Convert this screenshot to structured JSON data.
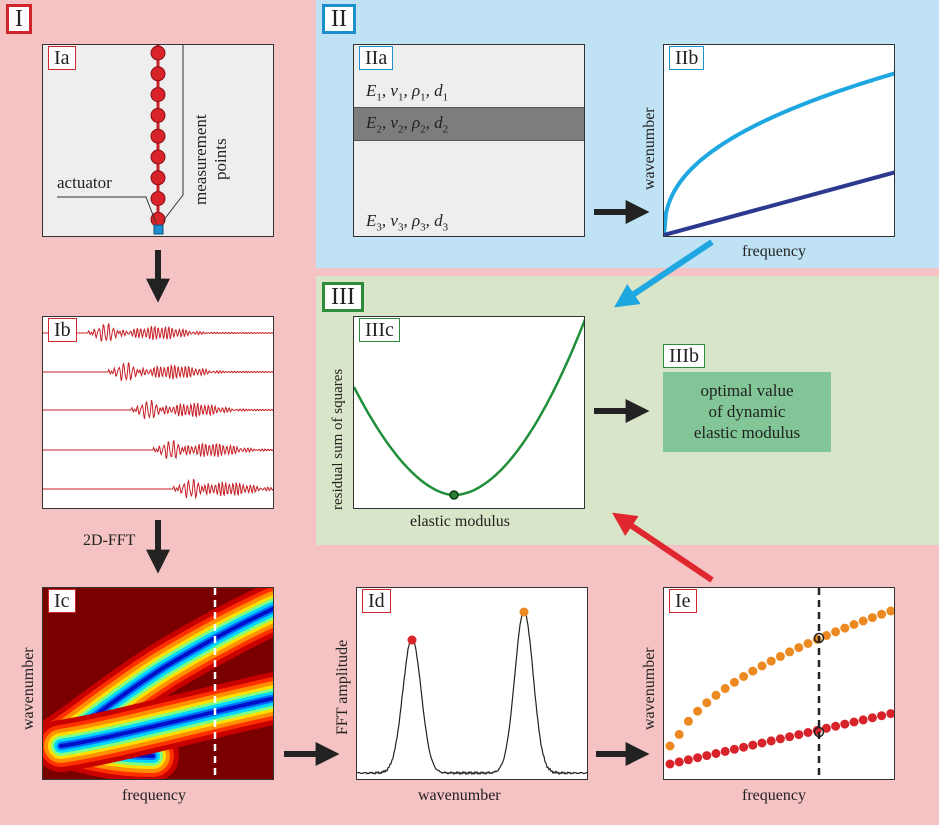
{
  "regions": {
    "I": {
      "label": "I",
      "color": "#d0252b"
    },
    "II": {
      "label": "II",
      "color": "#1c8fce"
    },
    "III": {
      "label": "III",
      "color": "#2e8b3a"
    }
  },
  "panels": {
    "Ia": {
      "label": "Ia",
      "actuator_label": "actuator",
      "measurement_label_1": "measurement",
      "measurement_label_2": "points"
    },
    "Ib": {
      "label": "Ib",
      "traces": 5
    },
    "Ic": {
      "label": "Ic",
      "xlabel": "frequency",
      "ylabel": "wavenumber"
    },
    "Id": {
      "label": "Id",
      "xlabel": "wavenumber",
      "ylabel": "FFT amplitude"
    },
    "Ie": {
      "label": "Ie",
      "xlabel": "frequency",
      "ylabel": "wavenumber"
    },
    "IIa": {
      "label": "IIa",
      "layer1": {
        "E": "E",
        "E_sub": "1",
        "v": "v",
        "v_sub": "1",
        "rho": "ρ",
        "rho_sub": "1",
        "d": "d",
        "d_sub": "1"
      },
      "layer2": {
        "E": "E",
        "E_sub": "2",
        "v": "v",
        "v_sub": "2",
        "rho": "ρ",
        "rho_sub": "2",
        "d": "d",
        "d_sub": "2"
      },
      "layer3": {
        "E": "E",
        "E_sub": "3",
        "v": "v",
        "v_sub": "3",
        "rho": "ρ",
        "rho_sub": "3",
        "d": "d",
        "d_sub": "3"
      }
    },
    "IIb": {
      "label": "IIb",
      "xlabel": "frequency",
      "ylabel": "wavenumber"
    },
    "IIIc": {
      "label": "IIIc",
      "xlabel": "elastic modulus",
      "ylabel": "residual sum of squares"
    },
    "IIIb": {
      "label": "IIIb",
      "line1": "optimal value",
      "line2": "of dynamic",
      "line3": "elastic modulus"
    }
  },
  "step_label_2dfft": "2D-FFT",
  "colors": {
    "red_dot": "#d8232a",
    "orange_dot": "#ec8a21",
    "light_blue_curve": "#1ea7e1",
    "dark_blue_curve": "#2b3a8f",
    "green_curve": "#1f8f3a",
    "result_box": "#82c596",
    "arrow_dark": "#222222",
    "arrow_blue": "#1ea7e1",
    "arrow_red": "#e0262e"
  }
}
